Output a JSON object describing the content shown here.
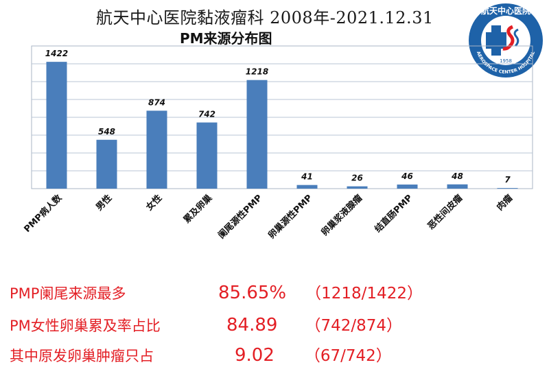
{
  "header": {
    "title": "航天中心医院黏液瘤科 2008年-2021.12.31",
    "subtitle": "PM来源分布图"
  },
  "logo": {
    "top_text": "航天中心医院",
    "ring_text": "AEROSPACE CENTER HOSPITAL",
    "year": "1958",
    "color": "#1e62a8",
    "accent_color": "#e31e24"
  },
  "chart_data": {
    "type": "bar",
    "categories": [
      "PMP病人数",
      "男性",
      "女性",
      "累及卵巢",
      "阑尾源性PMP",
      "卵巢源性PMP",
      "卵巢浆液腺瘤",
      "结直肠PMP",
      "恶性间皮瘤",
      "肉瘤"
    ],
    "values": [
      1422,
      548,
      874,
      742,
      1218,
      41,
      26,
      46,
      48,
      7
    ],
    "ylim": [
      0,
      1600
    ],
    "grid": true,
    "legend": "none",
    "bar_color": "#4a7ebb"
  },
  "stats": [
    {
      "label": "PMP阑尾来源最多",
      "value": "85.65%",
      "ratio": "（1218/1422）"
    },
    {
      "label": "PM女性卵巢累及率占比",
      "value": "84.89",
      "ratio": "（742/874）"
    },
    {
      "label": "其中原发卵巢肿瘤只占",
      "value": "9.02",
      "ratio": "（67/742）"
    }
  ]
}
